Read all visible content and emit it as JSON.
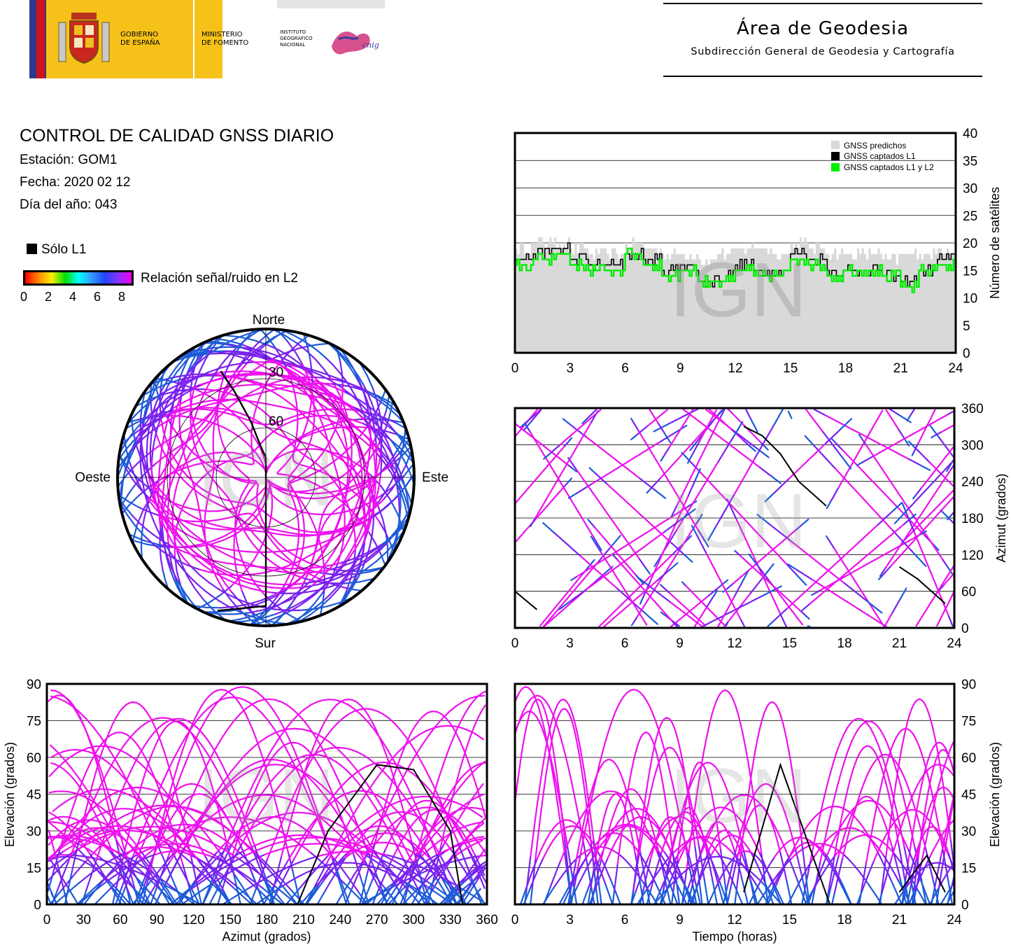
{
  "header": {
    "gov_line1": "GOBIERNO",
    "gov_line2": "DE ESPAÑA",
    "min_line1": "MINISTERIO",
    "min_line2": "DE FOMENTO",
    "ign_line1": "INSTITUTO",
    "ign_line2": "GEOGRÁFICO",
    "ign_line3": "NACIONAL",
    "cnig": "cnig",
    "area_title": "Área de Geodesia",
    "area_subtitle": "Subdirección General de Geodesia y Cartografía"
  },
  "report": {
    "title": "CONTROL DE CALIDAD GNSS DIARIO",
    "station": "Estación: GOM1",
    "date": "Fecha: 2020 02 12",
    "doy": "Día del año: 043"
  },
  "legend": {
    "l1_only": "Sólo L1",
    "snr_label": "Relación señal/ruido en L2",
    "snr_ticks": [
      "0",
      "2",
      "4",
      "6",
      "8"
    ]
  },
  "watermark": "IGN",
  "colors": {
    "gnss_predicted": "#d9d9d9",
    "gnss_l1": "#000000",
    "gnss_l1_l2": "#00ee00",
    "track_high_snr": "#ee11ee",
    "track_mid_snr": "#7a22ee",
    "track_low_snr": "#1e5bd8"
  },
  "chart_data": [
    {
      "id": "skyplot",
      "type": "scatter",
      "title": "",
      "projection": "polar",
      "directions": {
        "north": "Norte",
        "south": "Sur",
        "east": "Este",
        "west": "Oeste"
      },
      "elevation_rings": [
        "30",
        "60"
      ],
      "series": [
        {
          "name": "Sólo L1",
          "points_az_el": [
            [
              337,
              20
            ],
            [
              340,
              35
            ],
            [
              345,
              55
            ],
            [
              350,
              70
            ],
            [
              0,
              78
            ],
            [
              180,
              12
            ],
            [
              200,
              4
            ]
          ]
        }
      ]
    },
    {
      "id": "satellite_count",
      "type": "line",
      "title": "",
      "xlabel": "",
      "ylabel": "Número de satélites",
      "xlim": [
        0,
        24
      ],
      "ylim": [
        0,
        40
      ],
      "xticks": [
        "0",
        "3",
        "6",
        "9",
        "12",
        "15",
        "18",
        "21",
        "24"
      ],
      "yticks": [
        "0",
        "5",
        "10",
        "15",
        "20",
        "25",
        "30",
        "35",
        "40"
      ],
      "legend": {
        "position": "top-right"
      },
      "grid": true,
      "x": [
        0,
        1,
        2,
        3,
        4,
        5,
        6,
        7,
        8,
        9,
        10,
        11,
        12,
        13,
        14,
        15,
        16,
        17,
        18,
        19,
        20,
        21,
        22,
        23,
        24
      ],
      "series": [
        {
          "name": "GNSS predichos",
          "values": [
            19,
            20,
            20,
            19,
            18,
            18,
            20,
            19,
            18,
            18,
            17,
            18,
            19,
            19,
            18,
            20,
            19,
            18,
            18,
            18,
            17,
            18,
            18,
            19,
            20
          ]
        },
        {
          "name": "GNSS captados L1",
          "values": [
            17,
            18,
            19,
            17,
            16,
            16,
            18,
            17,
            15,
            16,
            13,
            14,
            16,
            15,
            15,
            18,
            17,
            15,
            15,
            15,
            14,
            13,
            15,
            17,
            19
          ]
        },
        {
          "name": "GNSS captados L1 y L2",
          "values": [
            16,
            17,
            18,
            16,
            15,
            15,
            18,
            16,
            14,
            15,
            13,
            13,
            15,
            14,
            14,
            17,
            16,
            14,
            15,
            15,
            14,
            12,
            15,
            16,
            18
          ]
        }
      ]
    },
    {
      "id": "azimuth_vs_time",
      "type": "scatter",
      "title": "",
      "xlabel": "",
      "ylabel": "Azimut (grados)",
      "xlim": [
        0,
        24
      ],
      "ylim": [
        0,
        360
      ],
      "xticks": [
        "0",
        "3",
        "6",
        "9",
        "12",
        "15",
        "18",
        "21",
        "24"
      ],
      "yticks": [
        "0",
        "60",
        "120",
        "180",
        "240",
        "300",
        "360"
      ],
      "grid": true,
      "series": [
        {
          "name": "Sólo L1",
          "points_t_az": [
            [
              12.5,
              330
            ],
            [
              13.5,
              315
            ],
            [
              14.5,
              285
            ],
            [
              15.5,
              240
            ],
            [
              17,
              200
            ],
            [
              21,
              100
            ],
            [
              22,
              80
            ],
            [
              23.5,
              40
            ],
            [
              0,
              60
            ],
            [
              1.2,
              30
            ]
          ]
        }
      ]
    },
    {
      "id": "elevation_vs_azimuth",
      "type": "scatter",
      "title": "",
      "xlabel": "Azimut (grados)",
      "ylabel": "Elevación (grados)",
      "xlim": [
        0,
        360
      ],
      "ylim": [
        0,
        90
      ],
      "xticks": [
        "0",
        "30",
        "60",
        "90",
        "120",
        "150",
        "180",
        "210",
        "240",
        "270",
        "300",
        "330",
        "360"
      ],
      "yticks": [
        "0",
        "15",
        "30",
        "45",
        "60",
        "75",
        "90"
      ],
      "grid": true,
      "series": [
        {
          "name": "Sólo L1",
          "points_az_el": [
            [
              205,
              0
            ],
            [
              230,
              30
            ],
            [
              270,
              57
            ],
            [
              300,
              55
            ],
            [
              330,
              30
            ],
            [
              340,
              0
            ]
          ]
        }
      ]
    },
    {
      "id": "elevation_vs_time",
      "type": "scatter",
      "title": "",
      "xlabel": "Tiempo (horas)",
      "ylabel": "Elevación (grados)",
      "xlim": [
        0,
        24
      ],
      "ylim": [
        0,
        90
      ],
      "xticks": [
        "0",
        "3",
        "6",
        "9",
        "12",
        "15",
        "18",
        "21",
        "24"
      ],
      "yticks": [
        "0",
        "15",
        "30",
        "45",
        "60",
        "75",
        "90"
      ],
      "grid": true,
      "series": [
        {
          "name": "Sólo L1",
          "points_t_el": [
            [
              12.5,
              5
            ],
            [
              14.5,
              57
            ],
            [
              17.2,
              0
            ],
            [
              21,
              5
            ],
            [
              22.5,
              20
            ],
            [
              23.5,
              5
            ]
          ]
        }
      ]
    }
  ]
}
